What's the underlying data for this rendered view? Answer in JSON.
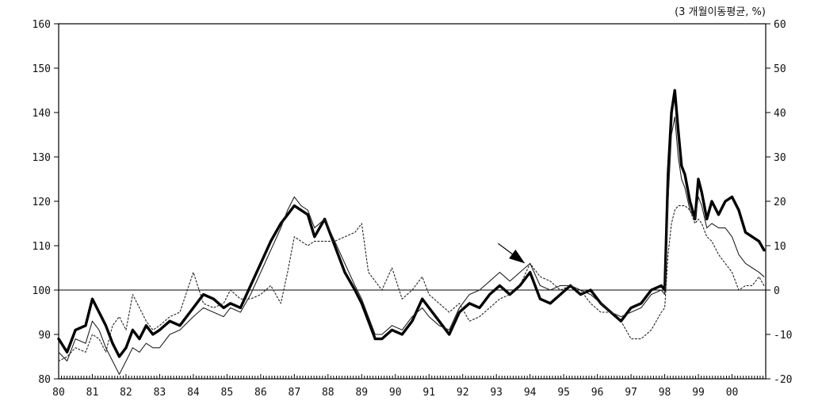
{
  "chart_data": {
    "type": "line",
    "title": "",
    "unit_note": "(3  개월이동평균,    %)",
    "xlabel": "",
    "ylabel": "",
    "x_tick_labels": [
      "80",
      "81",
      "82",
      "83",
      "84",
      "85",
      "86",
      "87",
      "88",
      "89",
      "90",
      "91",
      "92",
      "93",
      "94",
      "95",
      "96",
      "97",
      "98",
      "99",
      "00"
    ],
    "x_range": [
      1980,
      2001
    ],
    "y_left": {
      "ticks": [
        "80",
        "90",
        "100",
        "110",
        "120",
        "130",
        "140",
        "150",
        "160"
      ],
      "range": [
        80,
        160
      ]
    },
    "y_right": {
      "ticks": [
        "-20",
        "-10",
        "0",
        "10",
        "20",
        "30",
        "40",
        "50",
        "60"
      ],
      "range": [
        -20,
        60
      ]
    },
    "baseline_left_value": 100,
    "grid": false,
    "legend": "none",
    "series": [
      {
        "style": "thick",
        "color": "#000000",
        "x": [
          1980.0,
          1980.25,
          1980.5,
          1980.8,
          1981.0,
          1981.2,
          1981.4,
          1981.6,
          1981.8,
          1982.0,
          1982.2,
          1982.4,
          1982.6,
          1982.8,
          1983.0,
          1983.3,
          1983.6,
          1984.0,
          1984.3,
          1984.6,
          1984.9,
          1985.1,
          1985.4,
          1985.7,
          1986.0,
          1986.3,
          1986.6,
          1986.8,
          1987.0,
          1987.2,
          1987.4,
          1987.6,
          1987.9,
          1988.2,
          1988.5,
          1988.8,
          1989.0,
          1989.2,
          1989.4,
          1989.6,
          1989.9,
          1990.2,
          1990.5,
          1990.8,
          1991.0,
          1991.3,
          1991.6,
          1991.9,
          1992.2,
          1992.5,
          1992.8,
          1993.1,
          1993.4,
          1993.7,
          1994.0,
          1994.3,
          1994.6,
          1994.9,
          1995.2,
          1995.5,
          1995.8,
          1996.1,
          1996.4,
          1996.7,
          1997.0,
          1997.3,
          1997.6,
          1997.9,
          1998.0,
          1998.1,
          1998.2,
          1998.3,
          1998.4,
          1998.5,
          1998.6,
          1998.75,
          1998.9,
          1999.0,
          1999.1,
          1999.25,
          1999.4,
          1999.6,
          1999.8,
          2000.0,
          2000.2,
          2000.4,
          2000.6,
          2000.8,
          2000.95
        ],
        "values": [
          89,
          86,
          91,
          92,
          98,
          95,
          92,
          88,
          85,
          87,
          91,
          89,
          92,
          90,
          91,
          93,
          92,
          96,
          99,
          98,
          96,
          97,
          96,
          101,
          106,
          111,
          115,
          117,
          119,
          118,
          117,
          112,
          116,
          110,
          104,
          100,
          97,
          93,
          89,
          89,
          91,
          90,
          93,
          98,
          96,
          93,
          90,
          95,
          97,
          96,
          99,
          101,
          99,
          101,
          104,
          98,
          97,
          99,
          101,
          99,
          100,
          97,
          95,
          93,
          96,
          97,
          100,
          101,
          100,
          126,
          140,
          145,
          136,
          128,
          126,
          120,
          116,
          125,
          122,
          116,
          120,
          117,
          120,
          121,
          118,
          113,
          112,
          111,
          109
        ]
      },
      {
        "style": "thin",
        "color": "#222222",
        "x": [
          1980.0,
          1980.25,
          1980.5,
          1980.8,
          1981.0,
          1981.2,
          1981.4,
          1981.6,
          1981.8,
          1982.0,
          1982.2,
          1982.4,
          1982.6,
          1982.8,
          1983.0,
          1983.3,
          1983.6,
          1984.0,
          1984.3,
          1984.6,
          1984.9,
          1985.1,
          1985.4,
          1985.7,
          1986.0,
          1986.3,
          1986.6,
          1986.8,
          1987.0,
          1987.2,
          1987.4,
          1987.6,
          1987.9,
          1988.2,
          1988.5,
          1988.8,
          1989.0,
          1989.2,
          1989.4,
          1989.6,
          1989.9,
          1990.2,
          1990.5,
          1990.8,
          1991.0,
          1991.3,
          1991.6,
          1991.9,
          1992.2,
          1992.5,
          1992.8,
          1993.1,
          1993.4,
          1993.7,
          1994.0,
          1994.3,
          1994.6,
          1994.9,
          1995.2,
          1995.5,
          1995.8,
          1996.1,
          1996.4,
          1996.7,
          1997.0,
          1997.3,
          1997.6,
          1997.9,
          1998.0,
          1998.1,
          1998.2,
          1998.3,
          1998.4,
          1998.5,
          1998.6,
          1998.75,
          1998.9,
          1999.0,
          1999.1,
          1999.25,
          1999.4,
          1999.6,
          1999.8,
          2000.0,
          2000.2,
          2000.4,
          2000.6,
          2000.8,
          2000.95
        ],
        "values": [
          86,
          84,
          89,
          88,
          93,
          91,
          87,
          84,
          81,
          84,
          87,
          86,
          88,
          87,
          87,
          90,
          91,
          94,
          96,
          95,
          94,
          96,
          95,
          99,
          104,
          109,
          114,
          118,
          121,
          119,
          118,
          114,
          116,
          111,
          106,
          101,
          98,
          94,
          90,
          90,
          92,
          91,
          94,
          96,
          94,
          92,
          91,
          96,
          99,
          100,
          102,
          104,
          102,
          104,
          106,
          101,
          100,
          101,
          101,
          100,
          99,
          97,
          95,
          94,
          95,
          96,
          99,
          100,
          99,
          120,
          135,
          139,
          130,
          125,
          123,
          118,
          116,
          121,
          119,
          114,
          115,
          114,
          114,
          112,
          108,
          106,
          105,
          104,
          103
        ]
      },
      {
        "style": "dotted",
        "color": "#222222",
        "x": [
          1980.0,
          1980.25,
          1980.5,
          1980.8,
          1981.0,
          1981.2,
          1981.4,
          1981.6,
          1981.8,
          1982.0,
          1982.2,
          1982.4,
          1982.6,
          1982.8,
          1983.0,
          1983.3,
          1983.6,
          1984.0,
          1984.3,
          1984.6,
          1984.9,
          1985.1,
          1985.4,
          1985.7,
          1986.0,
          1986.3,
          1986.6,
          1986.8,
          1987.0,
          1987.2,
          1987.4,
          1987.6,
          1987.9,
          1988.2,
          1988.5,
          1988.8,
          1989.0,
          1989.2,
          1989.4,
          1989.6,
          1989.9,
          1990.2,
          1990.5,
          1990.8,
          1991.0,
          1991.3,
          1991.6,
          1991.9,
          1992.2,
          1992.5,
          1992.8,
          1993.1,
          1993.4,
          1993.7,
          1994.0,
          1994.3,
          1994.6,
          1994.9,
          1995.2,
          1995.5,
          1995.8,
          1996.1,
          1996.4,
          1996.7,
          1997.0,
          1997.3,
          1997.6,
          1997.9,
          1998.0,
          1998.1,
          1998.2,
          1998.3,
          1998.4,
          1998.5,
          1998.6,
          1998.75,
          1998.9,
          1999.0,
          1999.1,
          1999.25,
          1999.4,
          1999.6,
          1999.8,
          2000.0,
          2000.2,
          2000.4,
          2000.6,
          2000.8,
          2000.95
        ],
        "values": [
          84,
          85,
          87,
          86,
          90,
          89,
          86,
          92,
          94,
          91,
          99,
          96,
          93,
          91,
          92,
          94,
          95,
          104,
          97,
          96,
          97,
          100,
          98,
          98,
          99,
          101,
          97,
          104,
          112,
          111,
          110,
          111,
          111,
          111,
          112,
          113,
          115,
          104,
          102,
          100,
          105,
          98,
          100,
          103,
          99,
          97,
          95,
          97,
          93,
          94,
          96,
          98,
          99,
          101,
          106,
          103,
          102,
          100,
          101,
          100,
          97,
          95,
          95,
          93,
          89,
          89,
          91,
          95,
          96,
          108,
          115,
          118,
          119,
          119,
          119,
          118,
          115,
          116,
          115,
          112,
          111,
          108,
          106,
          104,
          100,
          101,
          101,
          103,
          101
        ]
      }
    ],
    "annotations": [
      {
        "type": "arrow",
        "from": [
          1993.05,
          110.5
        ],
        "to": [
          1993.85,
          106
        ]
      }
    ]
  }
}
